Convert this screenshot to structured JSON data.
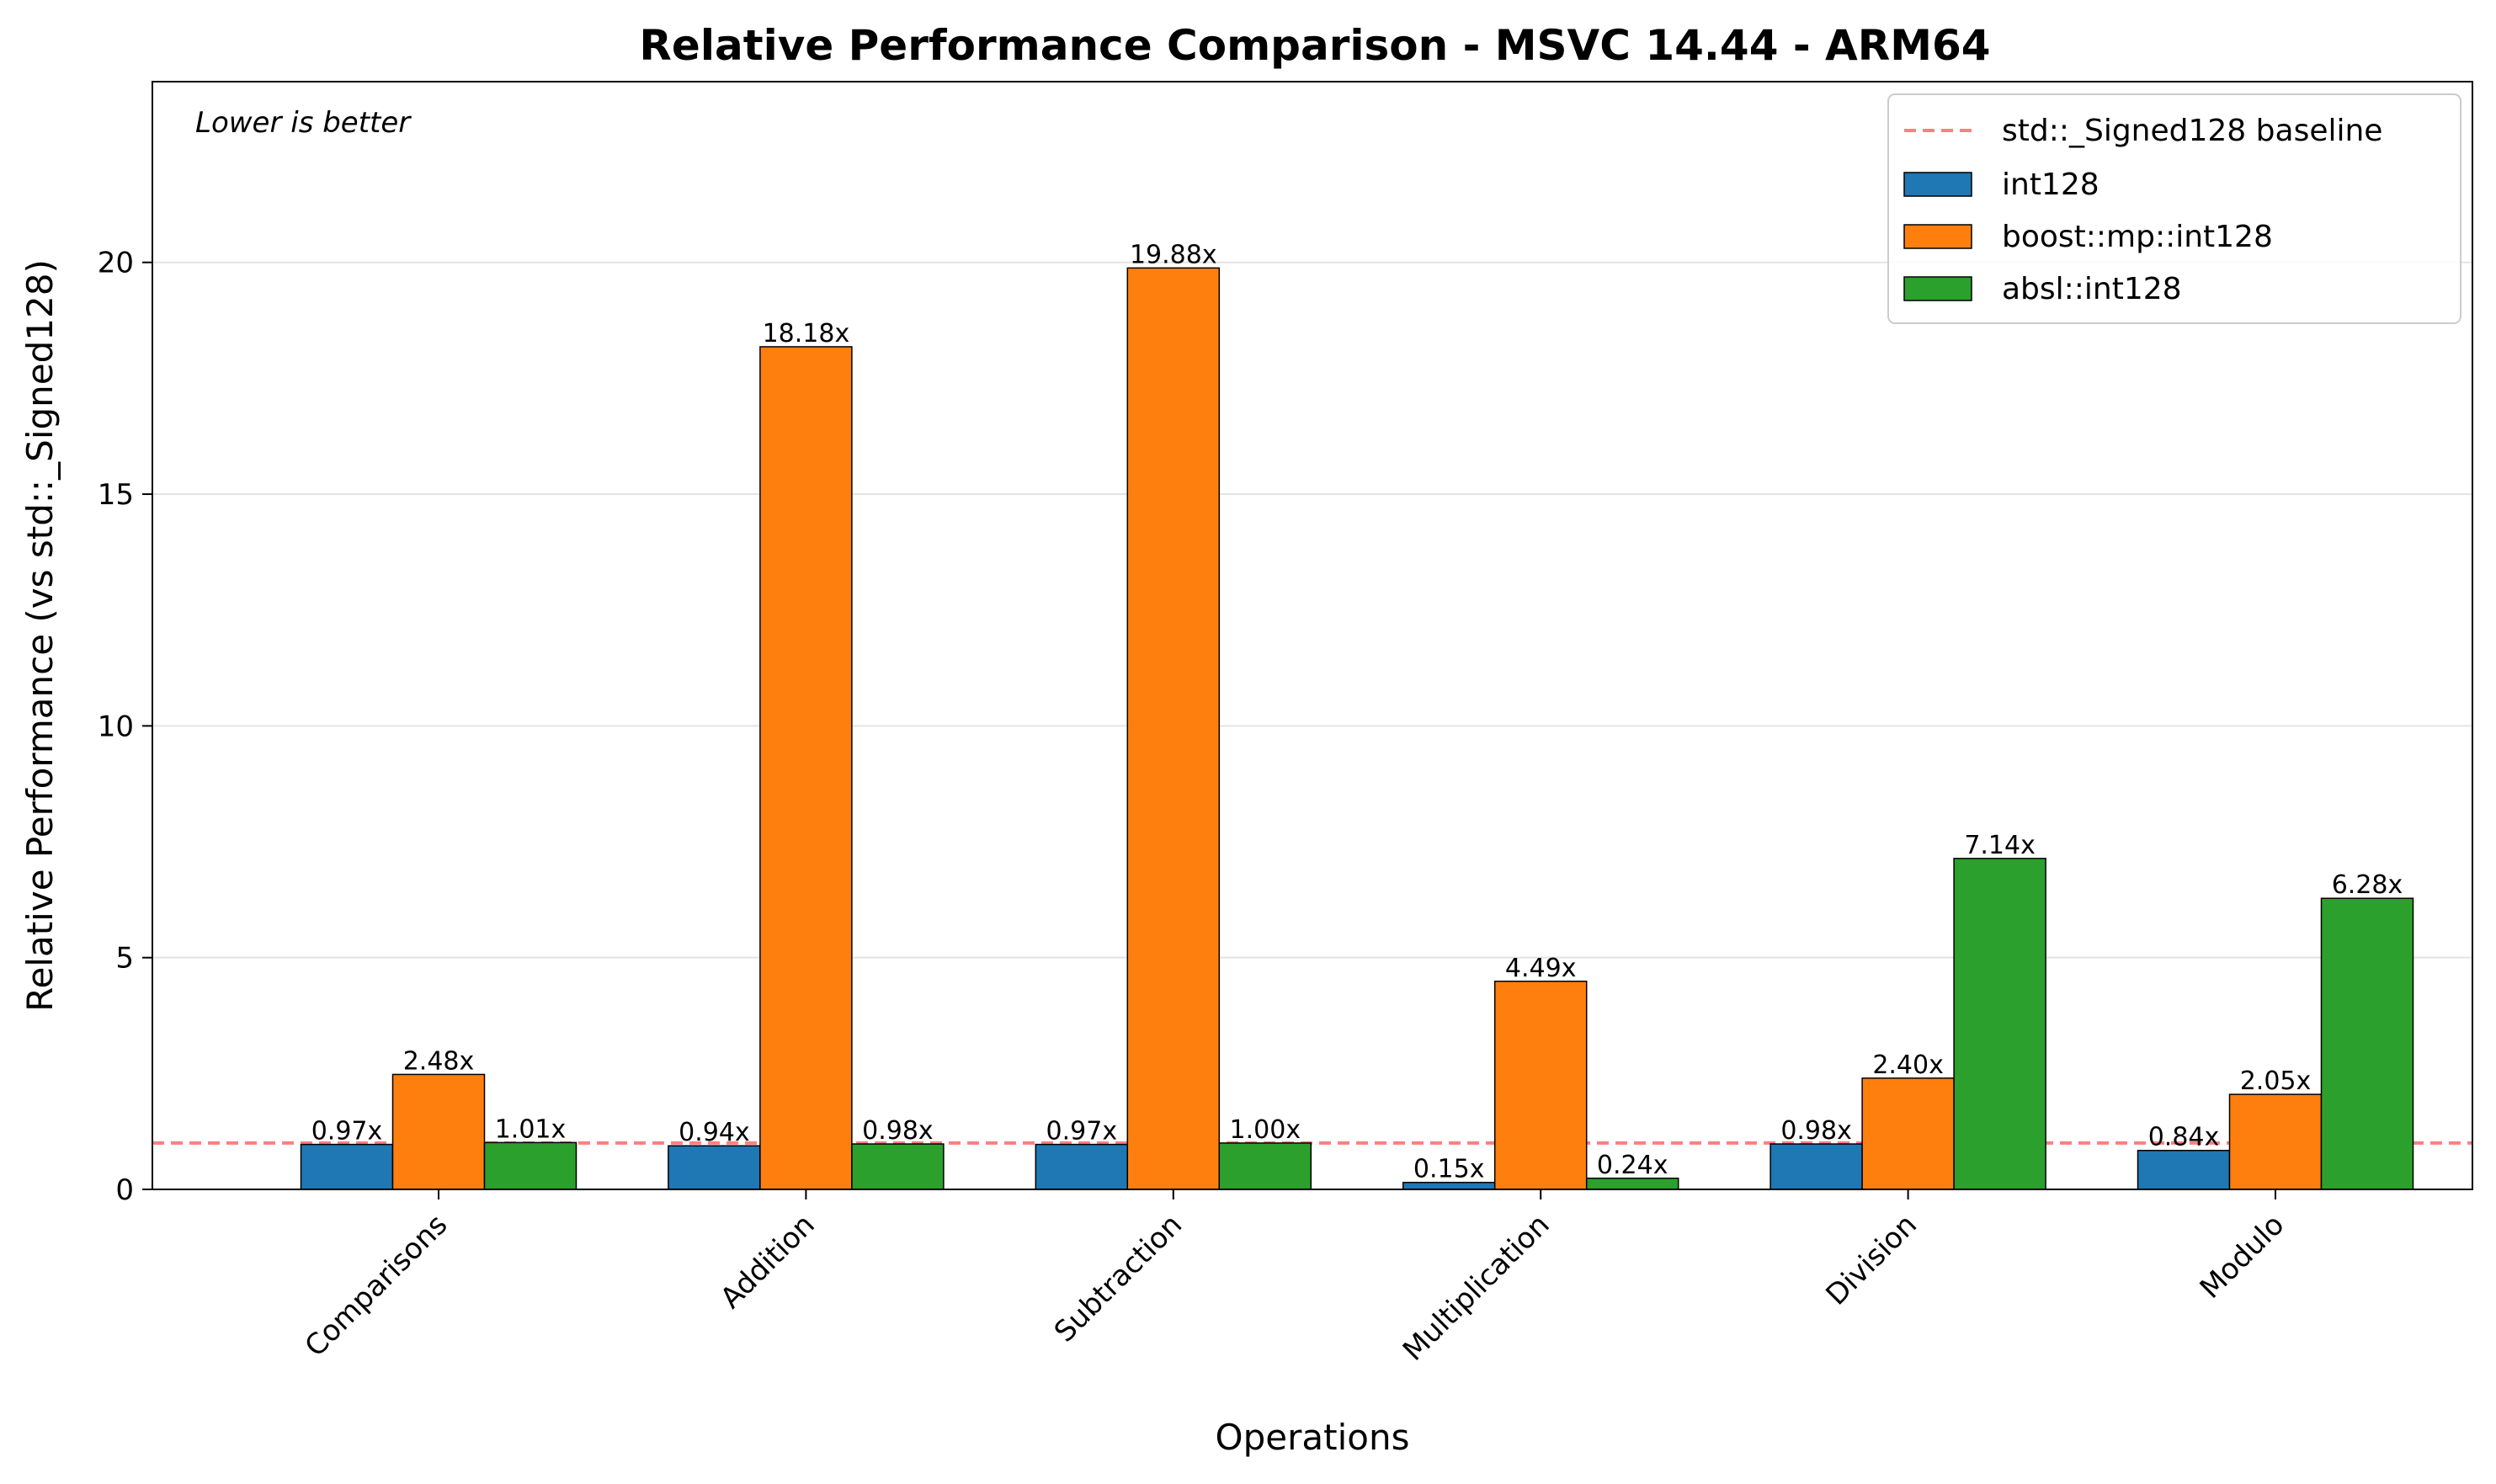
{
  "chart_data": {
    "type": "bar",
    "title": "Relative Performance Comparison - MSVC 14.44 - ARM64",
    "xlabel": "Operations",
    "ylabel": "Relative Performance (vs std::_Signed128)",
    "annotation": "Lower is better",
    "categories": [
      "Comparisons",
      "Addition",
      "Subtraction",
      "Multiplication",
      "Division",
      "Modulo"
    ],
    "series": [
      {
        "name": "int128",
        "color": "#1f77b4",
        "values": [
          0.97,
          0.94,
          0.97,
          0.15,
          0.98,
          0.84
        ],
        "labels": [
          "0.97x",
          "0.94x",
          "0.97x",
          "0.15x",
          "0.98x",
          "0.84x"
        ]
      },
      {
        "name": "boost::mp::int128",
        "color": "#ff7f0e",
        "values": [
          2.48,
          18.18,
          19.88,
          4.49,
          2.4,
          2.05
        ],
        "labels": [
          "2.48x",
          "18.18x",
          "19.88x",
          "4.49x",
          "2.40x",
          "2.05x"
        ]
      },
      {
        "name": "absl::int128",
        "color": "#2ca02c",
        "values": [
          1.01,
          0.98,
          1.0,
          0.24,
          7.14,
          6.28
        ],
        "labels": [
          "1.01x",
          "0.98x",
          "1.00x",
          "0.24x",
          "7.14x",
          "6.28x"
        ]
      }
    ],
    "baseline": {
      "name": "std::_Signed128 baseline",
      "value": 1.0,
      "color": "#ff0000"
    },
    "ylim": [
      0,
      23.9
    ],
    "yticks": [
      0,
      5,
      10,
      15,
      20
    ],
    "ytick_labels": [
      "0",
      "5",
      "10",
      "15",
      "20"
    ],
    "grid": "horizontal",
    "legend_position": "top-right"
  }
}
